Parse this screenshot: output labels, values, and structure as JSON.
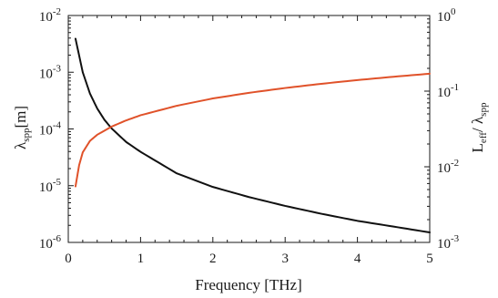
{
  "chart_data": {
    "type": "line",
    "xlabel": "Frequency [THz]",
    "xlim": [
      0,
      5
    ],
    "x_ticks": [
      "0",
      "1",
      "2",
      "3",
      "4",
      "5"
    ],
    "ylabel_left": {
      "base": "λ",
      "sub": "spp",
      "unit": "[m]"
    },
    "ylabel_right": {
      "a": "L",
      "a_sub": "eff",
      "slash": "/ ",
      "b": "λ",
      "b_sub": "spp"
    },
    "y_left": {
      "scale": "log",
      "lim": [
        1e-06,
        0.01
      ],
      "tick_exponents": [
        "-6",
        "-5",
        "-4",
        "-3",
        "-2"
      ],
      "base": "10"
    },
    "y_right": {
      "scale": "log",
      "lim": [
        0.001,
        1
      ],
      "tick_exponents": [
        "-3",
        "-2",
        "-1",
        "0"
      ],
      "base": "10"
    },
    "grid": false,
    "series": [
      {
        "axis": "left",
        "color": "#111111",
        "x": [
          0.1,
          0.2,
          0.3,
          0.4,
          0.5,
          0.6,
          0.8,
          1.0,
          1.5,
          2.0,
          2.5,
          3.0,
          3.5,
          4.0,
          4.5,
          5.0
        ],
        "y": [
          0.0039,
          0.001,
          0.00042,
          0.00023,
          0.000145,
          0.000102,
          5.9e-05,
          3.95e-05,
          1.65e-05,
          9.5e-06,
          6.3e-06,
          4.4e-06,
          3.2e-06,
          2.4e-06,
          1.9e-06,
          1.5e-06
        ]
      },
      {
        "axis": "right",
        "color": "#e0522a",
        "x": [
          0.1,
          0.15,
          0.2,
          0.3,
          0.4,
          0.5,
          0.6,
          0.8,
          1.0,
          1.5,
          2.0,
          2.5,
          3.0,
          3.5,
          4.0,
          4.5,
          5.0
        ],
        "y": [
          0.0055,
          0.0105,
          0.0155,
          0.022,
          0.0265,
          0.03,
          0.034,
          0.041,
          0.048,
          0.064,
          0.08,
          0.095,
          0.11,
          0.125,
          0.14,
          0.155,
          0.17
        ]
      }
    ]
  }
}
